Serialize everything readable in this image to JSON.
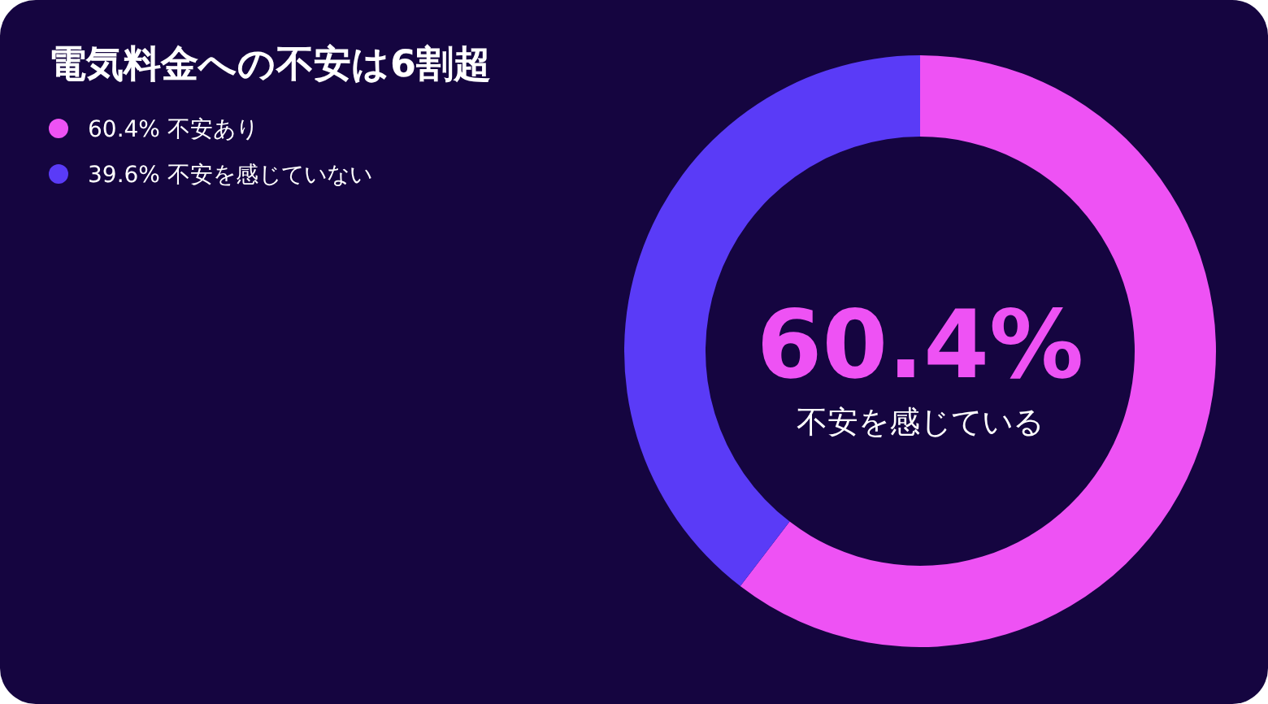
{
  "chart_data": {
    "type": "donut",
    "title": "電気料金への不安は6割超",
    "categories": [
      "不安あり",
      "不安を感じていない"
    ],
    "values": [
      60.4,
      39.6
    ],
    "colors": [
      "#ee52f4",
      "#5a3bf7"
    ],
    "value_labels": [
      "60.4%",
      "39.6%"
    ],
    "legend": "top left",
    "annotations": [
      "60.4%",
      "不安を感じている"
    ]
  }
}
